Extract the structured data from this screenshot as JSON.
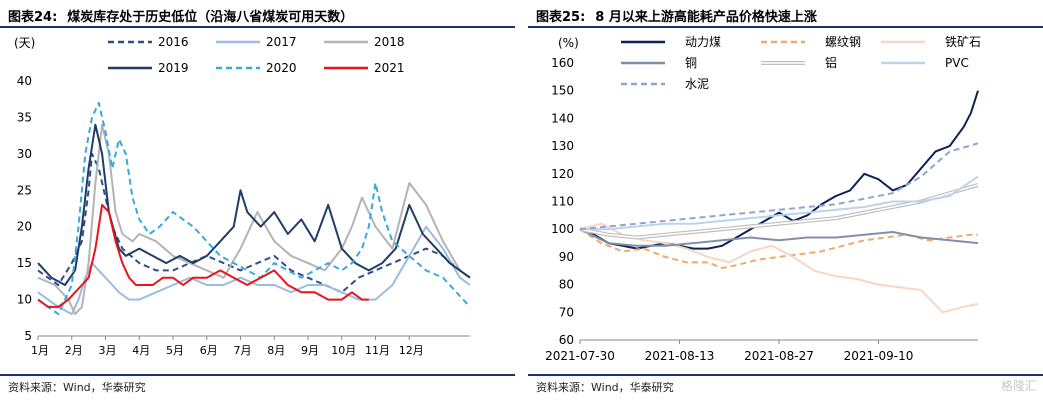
{
  "left": {
    "fig_num": "图表24:",
    "title": "煤炭库存处于历史低位（沿海八省煤炭可用天数）",
    "source": "资料来源：Wind，华泰研究",
    "colors": {
      "2016": "#2e4d8a",
      "2017": "#9bbbe0",
      "2018": "#b4b4b4",
      "2019": "#1f3d66",
      "2020": "#39a9dc",
      "2021": "#e8141b"
    }
  },
  "right": {
    "fig_num": "图表25:",
    "title": "8 月以来上游高能耗产品价格快速上涨",
    "source": "资料来源：Wind，华泰研究",
    "colors": {
      "动力煤": "#0d2258",
      "螺纹钢": "#f2a76b",
      "铁矿石": "#f8d6c4",
      "铜": "#8090a8",
      "铝": "#c0c0c0",
      "PVC": "#bdd3ea",
      "水泥": "#8da6cf"
    }
  },
  "watermark": "格隆汇",
  "chart_data": [
    {
      "type": "line",
      "title": "煤炭库存处于历史低位（沿海八省煤炭可用天数）",
      "ylabel": "(天)",
      "ylim": [
        5,
        40
      ],
      "yticks": [
        5,
        10,
        15,
        20,
        25,
        30,
        35,
        40
      ],
      "categories": [
        "1月",
        "2月",
        "3月",
        "4月",
        "5月",
        "6月",
        "7月",
        "8月",
        "9月",
        "10月",
        "11月",
        "12月"
      ],
      "xlim": [
        0,
        12.8
      ],
      "legend_position": "top",
      "series": [
        {
          "name": "2016",
          "style": "dashed",
          "x": [
            0,
            0.3,
            0.6,
            1.0,
            1.3,
            1.5,
            1.6,
            1.8,
            2.0,
            2.2,
            2.5,
            3.0,
            3.5,
            4.0,
            4.5,
            5.0,
            5.5,
            6.0,
            6.5,
            7.0,
            7.5,
            8.0,
            8.5,
            9.0,
            9.5,
            10.0,
            10.5,
            11.0,
            11.5,
            12.0,
            12.5,
            12.8
          ],
          "values": [
            14,
            13,
            12,
            15,
            18,
            25,
            30,
            28,
            24,
            20,
            17,
            15,
            14,
            14,
            15,
            16,
            15,
            14,
            15,
            16,
            14,
            13,
            12,
            11,
            13,
            14,
            15,
            16,
            17,
            16,
            14,
            13
          ]
        },
        {
          "name": "2017",
          "style": "solid",
          "x": [
            0,
            0.3,
            0.6,
            1.0,
            1.2,
            1.4,
            1.6,
            1.8,
            2.0,
            2.2,
            2.4,
            2.7,
            3.0,
            3.5,
            4.0,
            4.5,
            5.0,
            5.5,
            6.0,
            6.5,
            7.0,
            7.5,
            8.0,
            8.5,
            9.0,
            9.5,
            10.0,
            10.5,
            11.0,
            11.5,
            12.0,
            12.5,
            12.8
          ],
          "values": [
            11,
            10,
            9,
            8,
            10,
            13,
            15,
            14,
            13,
            12,
            11,
            10,
            10,
            11,
            12,
            13,
            12,
            12,
            13,
            12,
            12,
            11,
            12,
            12,
            11,
            10,
            10,
            12,
            16,
            20,
            17,
            13,
            12
          ]
        },
        {
          "name": "2018",
          "style": "solid",
          "x": [
            0,
            0.5,
            0.9,
            1.1,
            1.3,
            1.5,
            1.7,
            1.9,
            2.1,
            2.3,
            2.5,
            2.8,
            3.0,
            3.5,
            4.0,
            4.5,
            5.0,
            5.5,
            6.0,
            6.5,
            7.0,
            7.5,
            8.0,
            8.5,
            9.0,
            9.3,
            9.6,
            10.0,
            10.5,
            11.0,
            11.5,
            12.0,
            12.5,
            12.8
          ],
          "values": [
            13,
            12,
            10,
            8,
            9,
            15,
            26,
            34,
            30,
            22,
            19,
            18,
            19,
            18,
            16,
            15,
            14,
            13,
            17,
            22,
            18,
            16,
            15,
            14,
            17,
            20,
            24,
            20,
            17,
            26,
            23,
            18,
            14,
            13
          ]
        },
        {
          "name": "2019",
          "style": "solid",
          "x": [
            0,
            0.4,
            0.8,
            1.1,
            1.3,
            1.5,
            1.7,
            1.9,
            2.1,
            2.4,
            2.6,
            3.0,
            3.4,
            3.8,
            4.2,
            4.6,
            5.0,
            5.4,
            5.8,
            6.0,
            6.2,
            6.6,
            7.0,
            7.4,
            7.8,
            8.2,
            8.6,
            9.0,
            9.4,
            9.8,
            10.2,
            10.6,
            11.0,
            11.4,
            11.8,
            12.2,
            12.5,
            12.8
          ],
          "values": [
            15,
            13,
            12,
            14,
            20,
            28,
            34,
            30,
            22,
            17,
            16,
            17,
            16,
            15,
            16,
            15,
            16,
            18,
            20,
            25,
            22,
            20,
            22,
            19,
            21,
            18,
            23,
            17,
            15,
            14,
            15,
            17,
            23,
            19,
            17,
            15,
            14,
            13
          ]
        },
        {
          "name": "2020",
          "style": "dashed",
          "x": [
            0,
            0.3,
            0.6,
            1.0,
            1.2,
            1.4,
            1.6,
            1.8,
            2.0,
            2.2,
            2.4,
            2.6,
            2.8,
            3.0,
            3.3,
            3.6,
            4.0,
            4.3,
            4.6,
            5.0,
            5.4,
            5.8,
            6.2,
            6.6,
            7.0,
            7.4,
            7.8,
            8.2,
            8.6,
            9.0,
            9.3,
            9.6,
            9.8,
            10.0,
            10.2,
            10.5,
            11.0,
            11.5,
            12.0,
            12.4,
            12.8
          ],
          "values": [
            10,
            9,
            8,
            12,
            20,
            30,
            35,
            37,
            33,
            28,
            32,
            30,
            24,
            21,
            19,
            20,
            22,
            21,
            20,
            18,
            16,
            15,
            14,
            13,
            15,
            14,
            13,
            14,
            15,
            14,
            15,
            17,
            20,
            26,
            22,
            18,
            16,
            14,
            13,
            11,
            9
          ]
        },
        {
          "name": "2021",
          "style": "solid",
          "x": [
            0,
            0.3,
            0.6,
            0.9,
            1.1,
            1.3,
            1.5,
            1.7,
            1.9,
            2.1,
            2.3,
            2.5,
            2.7,
            2.9,
            3.1,
            3.4,
            3.7,
            4.0,
            4.3,
            4.6,
            5.0,
            5.4,
            5.8,
            6.2,
            6.6,
            7.0,
            7.4,
            7.8,
            8.2,
            8.6,
            9.0,
            9.3,
            9.6,
            9.8
          ],
          "values": [
            10,
            9,
            9,
            10,
            11,
            12,
            13,
            17,
            23,
            22,
            18,
            15,
            13,
            12,
            12,
            12,
            13,
            13,
            12,
            13,
            13,
            14,
            13,
            12,
            13,
            14,
            12,
            11,
            11,
            10,
            10,
            11,
            10,
            10
          ]
        }
      ]
    },
    {
      "type": "line",
      "title": "8 月以来上游高能耗产品价格快速上涨",
      "ylabel": "(%)",
      "ylim": [
        60,
        160
      ],
      "yticks": [
        60,
        70,
        80,
        90,
        100,
        110,
        120,
        130,
        140,
        150,
        160
      ],
      "x_tick_labels": [
        "2021-07-30",
        "2021-08-13",
        "2021-08-27",
        "2021-09-10"
      ],
      "x_unit": "days since 2021-07-30",
      "xlim": [
        0,
        56
      ],
      "legend_position": "top",
      "series": [
        {
          "name": "动力煤",
          "style": "solid",
          "x": [
            0,
            2,
            4,
            6,
            8,
            10,
            12,
            14,
            16,
            18,
            20,
            22,
            24,
            26,
            28,
            30,
            32,
            34,
            36,
            38,
            40,
            42,
            44,
            46,
            48,
            50,
            52,
            54,
            55,
            56
          ],
          "values": [
            100,
            98,
            95,
            94,
            93,
            94,
            95,
            94,
            93,
            93,
            94,
            97,
            100,
            103,
            106,
            103,
            105,
            109,
            112,
            114,
            120,
            118,
            114,
            116,
            122,
            128,
            130,
            137,
            142,
            150
          ]
        },
        {
          "name": "螺纹钢",
          "style": "dashed",
          "x": [
            0,
            3,
            6,
            9,
            12,
            15,
            18,
            20,
            22,
            25,
            28,
            31,
            34,
            37,
            40,
            43,
            46,
            49,
            52,
            55,
            56
          ],
          "values": [
            100,
            95,
            92,
            93,
            90,
            88,
            88,
            86,
            87,
            89,
            90,
            91,
            92,
            94,
            96,
            97,
            98,
            96,
            97,
            98,
            98
          ]
        },
        {
          "name": "铁矿石",
          "style": "solid",
          "x": [
            0,
            3,
            6,
            9,
            12,
            15,
            18,
            21,
            24,
            27,
            30,
            33,
            36,
            39,
            42,
            45,
            48,
            51,
            54,
            56
          ],
          "values": [
            100,
            102,
            98,
            96,
            95,
            93,
            90,
            88,
            92,
            94,
            90,
            85,
            83,
            82,
            80,
            79,
            78,
            70,
            72,
            73
          ]
        },
        {
          "name": "铜",
          "style": "solid",
          "x": [
            0,
            4,
            8,
            12,
            16,
            20,
            24,
            28,
            32,
            36,
            40,
            44,
            48,
            52,
            56
          ],
          "values": [
            100,
            95,
            94,
            94,
            95,
            96,
            97,
            96,
            97,
            97,
            98,
            99,
            97,
            96,
            95
          ]
        },
        {
          "name": "铝",
          "style": "double",
          "x": [
            0,
            4,
            8,
            12,
            16,
            20,
            24,
            28,
            32,
            36,
            40,
            44,
            48,
            52,
            56
          ],
          "values": [
            100,
            98,
            97,
            98,
            99,
            100,
            101,
            102,
            103,
            104,
            106,
            108,
            110,
            113,
            116
          ]
        },
        {
          "name": "PVC",
          "style": "solid",
          "x": [
            0,
            4,
            8,
            12,
            16,
            20,
            24,
            28,
            32,
            36,
            40,
            44,
            48,
            52,
            56
          ],
          "values": [
            100,
            100,
            101,
            102,
            102,
            103,
            104,
            105,
            106,
            107,
            108,
            110,
            110,
            112,
            119
          ]
        },
        {
          "name": "水泥",
          "style": "dashed",
          "x": [
            0,
            4,
            8,
            12,
            16,
            20,
            24,
            28,
            32,
            36,
            40,
            44,
            48,
            52,
            56
          ],
          "values": [
            100,
            101,
            102,
            103,
            104,
            105,
            106,
            107,
            108,
            109,
            111,
            113,
            119,
            128,
            131
          ]
        }
      ]
    }
  ]
}
